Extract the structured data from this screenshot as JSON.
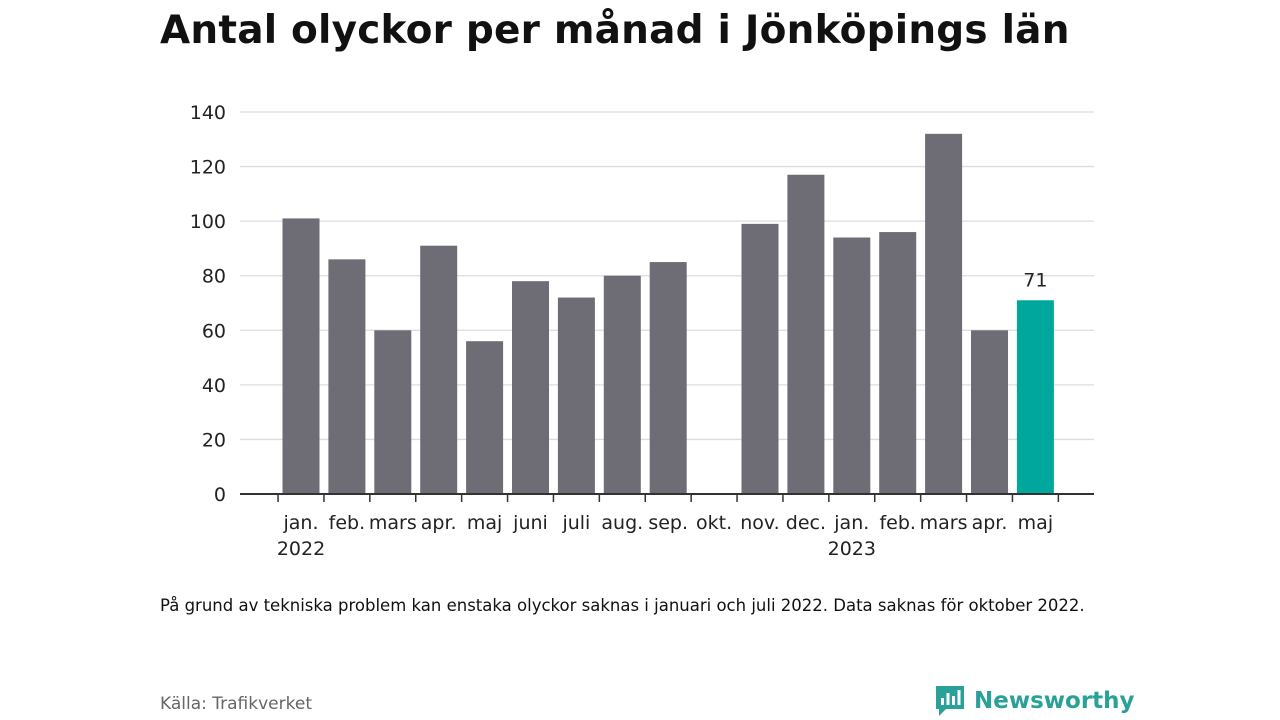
{
  "title": "Antal olyckor per månad i Jönköpings län",
  "note": "På grund av tekniska problem kan enstaka olyckor saknas i januari och juli 2022. Data saknas för oktober 2022.",
  "source": "Källa: Trafikverket",
  "brand": {
    "name": "Newsworthy",
    "icon": "newsworthy-logo-icon",
    "color": "#2aa198"
  },
  "chart_data": {
    "type": "bar",
    "categories": [
      "jan.",
      "feb.",
      "mars",
      "apr.",
      "maj",
      "juni",
      "juli",
      "aug.",
      "sep.",
      "okt.",
      "nov.",
      "dec.",
      "jan.",
      "feb.",
      "mars",
      "apr.",
      "maj"
    ],
    "years": [
      {
        "label": "2022",
        "category_index": 0
      },
      {
        "label": "2023",
        "category_index": 12
      }
    ],
    "values": [
      101,
      86,
      60,
      91,
      56,
      78,
      72,
      80,
      85,
      null,
      99,
      117,
      94,
      96,
      132,
      60,
      71
    ],
    "highlight_index": 16,
    "data_labels": [
      {
        "index": 16,
        "text": "71"
      }
    ],
    "ylim": [
      0,
      140
    ],
    "yticks": [
      0,
      20,
      40,
      60,
      80,
      100,
      120,
      140
    ],
    "grid": true,
    "legend": "none",
    "title": "Antal olyckor per månad i Jönköpings län",
    "xlabel": "",
    "ylabel": "",
    "colors": {
      "bar": "#6e6d75",
      "highlight": "#00a79d",
      "grid": "#dddddd",
      "axis": "#333333"
    }
  }
}
